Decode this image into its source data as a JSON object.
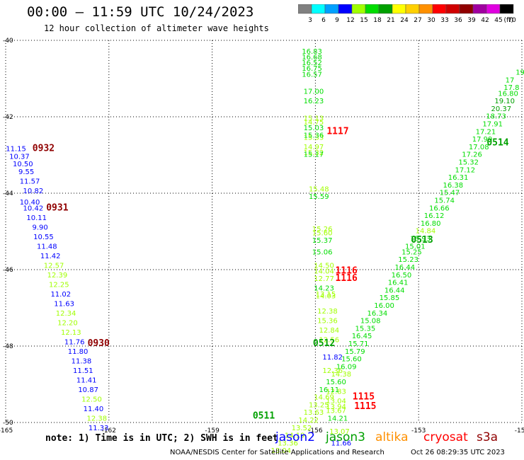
{
  "header": {
    "title": "00:00 – 11:59 UTC 10/24/2023",
    "subtitle": "12 hour collection of altimeter wave heights"
  },
  "color_scale": {
    "unit": "(ft)",
    "labels": [
      "3",
      "6",
      "9",
      "12",
      "15",
      "18",
      "21",
      "24",
      "27",
      "30",
      "33",
      "36",
      "39",
      "42",
      "45",
      "70"
    ],
    "colors": [
      "#808080",
      "#00ffff",
      "#00a0ff",
      "#0000ff",
      "#a0ff00",
      "#00dd00",
      "#00a000",
      "#ffff00",
      "#ffd000",
      "#ff9000",
      "#ff0000",
      "#d00000",
      "#900000",
      "#a000a0",
      "#e000e0",
      "#000000"
    ]
  },
  "footer": {
    "note": "note: 1) Time is in UTC; 2) SWH is in feet",
    "satellites": [
      {
        "name": "jason2",
        "color": "#0000ff"
      },
      {
        "name": "jason3",
        "color": "#00a000"
      },
      {
        "name": "altika",
        "color": "#ff9000"
      },
      {
        "name": "cryosat",
        "color": "#ff0000"
      },
      {
        "name": "s3a",
        "color": "#900000"
      }
    ],
    "credit": "NOAA/NESDIS Center for Satellite Applications and Research",
    "timestamp": "Oct 26 08:29:35 UTC 2023"
  },
  "chart_data": {
    "type": "scatter",
    "title": "00:00 – 11:59 UTC 10/24/2023",
    "subtitle": "12 hour collection of altimeter wave heights",
    "x_ticks": [
      "-165",
      "-162",
      "-159",
      "-156",
      "-153",
      "-150"
    ],
    "y_ticks": [
      "-40",
      "-42",
      "-44",
      "-46",
      "-48",
      "-50"
    ],
    "xlim": [
      -165,
      -150
    ],
    "ylim": [
      -50,
      -40
    ],
    "grid": true,
    "track_time_labels": [
      {
        "text": "0932",
        "lon": -163.9,
        "lat": -42.9,
        "color": "#900000"
      },
      {
        "text": "0931",
        "lon": -163.5,
        "lat": -44.45,
        "color": "#900000"
      },
      {
        "text": "0930",
        "lon": -162.3,
        "lat": -48.0,
        "color": "#900000"
      },
      {
        "text": "1117",
        "lon": -155.35,
        "lat": -42.45,
        "color": "#ff0000"
      },
      {
        "text": "1116",
        "lon": -155.1,
        "lat": -46.1,
        "color": "#ff0000"
      },
      {
        "text": "1116",
        "lon": -155.1,
        "lat": -46.3,
        "color": "#ff0000"
      },
      {
        "text": "1115",
        "lon": -154.6,
        "lat": -49.4,
        "color": "#ff0000"
      },
      {
        "text": "1115",
        "lon": -154.55,
        "lat": -49.65,
        "color": "#ff0000"
      },
      {
        "text": "0514",
        "lon": -150.7,
        "lat": -42.75,
        "color": "#00a000"
      },
      {
        "text": "0513",
        "lon": -152.9,
        "lat": -45.3,
        "color": "#00a000"
      },
      {
        "text": "0512",
        "lon": -155.75,
        "lat": -48.0,
        "color": "#00a000"
      },
      {
        "text": "0511",
        "lon": -157.5,
        "lat": -49.9,
        "color": "#00a000"
      }
    ],
    "series": [
      {
        "name": "s3a",
        "points": [
          {
            "lon": -164.7,
            "lat": -42.9,
            "v": "11.15",
            "c": "#0000ff"
          },
          {
            "lon": -164.6,
            "lat": -43.1,
            "v": "10.37",
            "c": "#0000ff"
          },
          {
            "lon": -164.5,
            "lat": -43.3,
            "v": "10.50",
            "c": "#0000ff"
          },
          {
            "lon": -164.4,
            "lat": -43.5,
            "v": "9.55",
            "c": "#0000ff"
          },
          {
            "lon": -164.3,
            "lat": -43.75,
            "v": "11.57",
            "c": "#0000ff"
          },
          {
            "lon": -164.2,
            "lat": -44.0,
            "v": "10.82",
            "c": "#0000ff"
          },
          {
            "lon": -164.3,
            "lat": -44.3,
            "v": "10.40",
            "c": "#0000ff"
          },
          {
            "lon": -164.2,
            "lat": -44.45,
            "v": "10.42",
            "c": "#0000ff"
          },
          {
            "lon": -164.1,
            "lat": -44.7,
            "v": "10.11",
            "c": "#0000ff"
          },
          {
            "lon": -164.0,
            "lat": -44.95,
            "v": "9.90",
            "c": "#0000ff"
          },
          {
            "lon": -163.9,
            "lat": -45.2,
            "v": "10.55",
            "c": "#0000ff"
          },
          {
            "lon": -163.8,
            "lat": -45.45,
            "v": "11.48",
            "c": "#0000ff"
          },
          {
            "lon": -163.7,
            "lat": -45.7,
            "v": "11.42",
            "c": "#0000ff"
          },
          {
            "lon": -163.6,
            "lat": -45.95,
            "v": "12.57",
            "c": "#a0ff00"
          },
          {
            "lon": -163.5,
            "lat": -46.2,
            "v": "12.39",
            "c": "#a0ff00"
          },
          {
            "lon": -163.45,
            "lat": -46.45,
            "v": "12.25",
            "c": "#a0ff00"
          },
          {
            "lon": -163.4,
            "lat": -46.7,
            "v": "11.02",
            "c": "#0000ff"
          },
          {
            "lon": -163.3,
            "lat": -46.95,
            "v": "11.63",
            "c": "#0000ff"
          },
          {
            "lon": -163.25,
            "lat": -47.2,
            "v": "12.34",
            "c": "#a0ff00"
          },
          {
            "lon": -163.2,
            "lat": -47.45,
            "v": "12.20",
            "c": "#a0ff00"
          },
          {
            "lon": -163.1,
            "lat": -47.7,
            "v": "12.13",
            "c": "#a0ff00"
          },
          {
            "lon": -163.0,
            "lat": -47.95,
            "v": "11.76",
            "c": "#0000ff"
          },
          {
            "lon": -162.9,
            "lat": -48.2,
            "v": "11.80",
            "c": "#0000ff"
          },
          {
            "lon": -162.8,
            "lat": -48.45,
            "v": "11.38",
            "c": "#0000ff"
          },
          {
            "lon": -162.75,
            "lat": -48.7,
            "v": "11.51",
            "c": "#0000ff"
          },
          {
            "lon": -162.65,
            "lat": -48.95,
            "v": "11.41",
            "c": "#0000ff"
          },
          {
            "lon": -162.6,
            "lat": -49.2,
            "v": "10.87",
            "c": "#0000ff"
          },
          {
            "lon": -162.5,
            "lat": -49.45,
            "v": "12.50",
            "c": "#a0ff00"
          },
          {
            "lon": -162.45,
            "lat": -49.7,
            "v": "11.40",
            "c": "#0000ff"
          },
          {
            "lon": -162.35,
            "lat": -49.95,
            "v": "12.38",
            "c": "#a0ff00"
          },
          {
            "lon": -162.3,
            "lat": -50.2,
            "v": "11.33",
            "c": "#0000ff"
          }
        ]
      },
      {
        "name": "cryosat",
        "points": [
          {
            "lon": -156.1,
            "lat": -40.35,
            "v": "16.83",
            "c": "#00dd00"
          },
          {
            "lon": -156.1,
            "lat": -40.5,
            "v": "16.68",
            "c": "#00dd00"
          },
          {
            "lon": -156.1,
            "lat": -40.65,
            "v": "16.52",
            "c": "#00dd00"
          },
          {
            "lon": -156.1,
            "lat": -40.8,
            "v": "16.75",
            "c": "#00dd00"
          },
          {
            "lon": -156.1,
            "lat": -40.95,
            "v": "16.57",
            "c": "#00dd00"
          },
          {
            "lon": -156.05,
            "lat": -41.4,
            "v": "17.00",
            "c": "#00dd00"
          },
          {
            "lon": -156.05,
            "lat": -41.65,
            "v": "16.23",
            "c": "#00dd00"
          },
          {
            "lon": -156.05,
            "lat": -42.1,
            "v": "15.13",
            "c": "#a0ff00"
          },
          {
            "lon": -156.05,
            "lat": -42.2,
            "v": "14.75",
            "c": "#a0ff00"
          },
          {
            "lon": -156.05,
            "lat": -42.35,
            "v": "15.03",
            "c": "#00dd00"
          },
          {
            "lon": -156.05,
            "lat": -42.6,
            "v": "15.33",
            "c": "#a0ff00"
          },
          {
            "lon": -156.05,
            "lat": -42.55,
            "v": "15.36",
            "c": "#00dd00"
          },
          {
            "lon": -156.05,
            "lat": -42.85,
            "v": "14.97",
            "c": "#a0ff00"
          },
          {
            "lon": -156.05,
            "lat": -43.0,
            "v": "15.32",
            "c": "#a0ff00"
          },
          {
            "lon": -156.05,
            "lat": -43.05,
            "v": "15.17",
            "c": "#00dd00"
          },
          {
            "lon": -155.9,
            "lat": -43.95,
            "v": "15.48",
            "c": "#a0ff00"
          },
          {
            "lon": -155.9,
            "lat": -44.15,
            "v": "15.59",
            "c": "#00dd00"
          },
          {
            "lon": -155.8,
            "lat": -45.0,
            "v": "15.26",
            "c": "#a0ff00"
          },
          {
            "lon": -155.8,
            "lat": -45.1,
            "v": "15.60",
            "c": "#a0ff00"
          },
          {
            "lon": -155.8,
            "lat": -45.3,
            "v": "15.37",
            "c": "#00dd00"
          },
          {
            "lon": -155.8,
            "lat": -45.6,
            "v": "15.06",
            "c": "#00dd00"
          },
          {
            "lon": -155.75,
            "lat": -45.95,
            "v": "14.50",
            "c": "#a0ff00"
          },
          {
            "lon": -155.75,
            "lat": -46.1,
            "v": "14.04",
            "c": "#a0ff00"
          },
          {
            "lon": -155.75,
            "lat": -46.3,
            "v": "12.77",
            "c": "#a0ff00"
          },
          {
            "lon": -155.75,
            "lat": -46.55,
            "v": "14.23",
            "c": "#00dd00"
          },
          {
            "lon": -155.7,
            "lat": -46.7,
            "v": "13.15",
            "c": "#a0ff00"
          },
          {
            "lon": -155.7,
            "lat": -46.75,
            "v": "14.03",
            "c": "#a0ff00"
          },
          {
            "lon": -155.65,
            "lat": -47.15,
            "v": "12.38",
            "c": "#a0ff00"
          },
          {
            "lon": -155.65,
            "lat": -47.4,
            "v": "15.36",
            "c": "#a0ff00"
          },
          {
            "lon": -155.6,
            "lat": -47.65,
            "v": "12.84",
            "c": "#a0ff00"
          },
          {
            "lon": -155.6,
            "lat": -47.9,
            "v": "12.56",
            "c": "#a0ff00"
          },
          {
            "lon": -155.5,
            "lat": -48.35,
            "v": "11.82",
            "c": "#0000ff"
          },
          {
            "lon": -155.5,
            "lat": -48.7,
            "v": "12.36",
            "c": "#a0ff00"
          },
          {
            "lon": -155.4,
            "lat": -49.25,
            "v": "12.83",
            "c": "#a0ff00"
          },
          {
            "lon": -155.4,
            "lat": -49.5,
            "v": "13.04",
            "c": "#a0ff00"
          },
          {
            "lon": -155.4,
            "lat": -49.65,
            "v": "13.94",
            "c": "#a0ff00"
          },
          {
            "lon": -155.4,
            "lat": -49.75,
            "v": "13.67",
            "c": "#a0ff00"
          },
          {
            "lon": -155.35,
            "lat": -49.95,
            "v": "14.21",
            "c": "#00dd00"
          },
          {
            "lon": -155.3,
            "lat": -50.3,
            "v": "13.07",
            "c": "#a0ff00"
          },
          {
            "lon": -155.25,
            "lat": -50.6,
            "v": "11.66",
            "c": "#0000ff"
          }
        ]
      },
      {
        "name": "jason3",
        "points": [
          {
            "lon": -150.05,
            "lat": -40.9,
            "v": "19",
            "c": "#00dd00"
          },
          {
            "lon": -150.35,
            "lat": -41.1,
            "v": "17",
            "c": "#00dd00"
          },
          {
            "lon": -150.3,
            "lat": -41.3,
            "v": "17.8",
            "c": "#00dd00"
          },
          {
            "lon": -150.4,
            "lat": -41.45,
            "v": "16.80",
            "c": "#00dd00"
          },
          {
            "lon": -150.5,
            "lat": -41.65,
            "v": "19.10",
            "c": "#00a000"
          },
          {
            "lon": -150.6,
            "lat": -41.85,
            "v": "20.37",
            "c": "#00a000"
          },
          {
            "lon": -150.75,
            "lat": -42.05,
            "v": "18.73",
            "c": "#00dd00"
          },
          {
            "lon": -150.85,
            "lat": -42.25,
            "v": "17.91",
            "c": "#00dd00"
          },
          {
            "lon": -151.05,
            "lat": -42.45,
            "v": "17.21",
            "c": "#00dd00"
          },
          {
            "lon": -151.15,
            "lat": -42.65,
            "v": "17.99",
            "c": "#00dd00"
          },
          {
            "lon": -151.25,
            "lat": -42.85,
            "v": "17.08",
            "c": "#00dd00"
          },
          {
            "lon": -151.45,
            "lat": -43.05,
            "v": "17.26",
            "c": "#00dd00"
          },
          {
            "lon": -151.55,
            "lat": -43.25,
            "v": "15.32",
            "c": "#00dd00"
          },
          {
            "lon": -151.65,
            "lat": -43.45,
            "v": "17.12",
            "c": "#00dd00"
          },
          {
            "lon": -151.85,
            "lat": -43.65,
            "v": "16.31",
            "c": "#00dd00"
          },
          {
            "lon": -152.0,
            "lat": -43.85,
            "v": "16.38",
            "c": "#00dd00"
          },
          {
            "lon": -152.1,
            "lat": -44.05,
            "v": "15.47",
            "c": "#00dd00"
          },
          {
            "lon": -152.25,
            "lat": -44.25,
            "v": "15.74",
            "c": "#00dd00"
          },
          {
            "lon": -152.4,
            "lat": -44.45,
            "v": "16.66",
            "c": "#00dd00"
          },
          {
            "lon": -152.55,
            "lat": -44.65,
            "v": "16.12",
            "c": "#00dd00"
          },
          {
            "lon": -152.65,
            "lat": -44.85,
            "v": "16.80",
            "c": "#00dd00"
          },
          {
            "lon": -152.8,
            "lat": -45.05,
            "v": "14.84",
            "c": "#a0ff00"
          },
          {
            "lon": -152.95,
            "lat": -45.25,
            "v": "15.93",
            "c": "#00dd00"
          },
          {
            "lon": -153.1,
            "lat": -45.45,
            "v": "15.01",
            "c": "#00dd00"
          },
          {
            "lon": -153.2,
            "lat": -45.6,
            "v": "15.25",
            "c": "#00dd00"
          },
          {
            "lon": -153.3,
            "lat": -45.8,
            "v": "15.23",
            "c": "#00dd00"
          },
          {
            "lon": -153.4,
            "lat": -46.0,
            "v": "16.44",
            "c": "#00dd00"
          },
          {
            "lon": -153.5,
            "lat": -46.2,
            "v": "16.50",
            "c": "#00dd00"
          },
          {
            "lon": -153.6,
            "lat": -46.4,
            "v": "16.41",
            "c": "#00dd00"
          },
          {
            "lon": -153.7,
            "lat": -46.6,
            "v": "16.44",
            "c": "#00dd00"
          },
          {
            "lon": -153.85,
            "lat": -46.8,
            "v": "15.85",
            "c": "#00dd00"
          },
          {
            "lon": -154.0,
            "lat": -47.0,
            "v": "16.00",
            "c": "#00dd00"
          },
          {
            "lon": -154.2,
            "lat": -47.2,
            "v": "16.34",
            "c": "#00dd00"
          },
          {
            "lon": -154.4,
            "lat": -47.4,
            "v": "15.08",
            "c": "#00dd00"
          },
          {
            "lon": -154.55,
            "lat": -47.6,
            "v": "15.35",
            "c": "#00dd00"
          },
          {
            "lon": -154.65,
            "lat": -47.8,
            "v": "16.45",
            "c": "#00dd00"
          },
          {
            "lon": -154.75,
            "lat": -48.0,
            "v": "15.71",
            "c": "#00dd00"
          },
          {
            "lon": -154.85,
            "lat": -48.2,
            "v": "15.79",
            "c": "#00dd00"
          },
          {
            "lon": -154.95,
            "lat": -48.4,
            "v": "15.60",
            "c": "#00dd00"
          },
          {
            "lon": -155.1,
            "lat": -48.6,
            "v": "16.09",
            "c": "#00dd00"
          },
          {
            "lon": -155.25,
            "lat": -48.8,
            "v": "14.38",
            "c": "#a0ff00"
          },
          {
            "lon": -155.4,
            "lat": -49.0,
            "v": "15.60",
            "c": "#00dd00"
          },
          {
            "lon": -155.6,
            "lat": -49.2,
            "v": "16.11",
            "c": "#00dd00"
          },
          {
            "lon": -155.75,
            "lat": -49.4,
            "v": "14.69",
            "c": "#a0ff00"
          },
          {
            "lon": -155.9,
            "lat": -49.6,
            "v": "13.25",
            "c": "#a0ff00"
          },
          {
            "lon": -156.05,
            "lat": -49.8,
            "v": "13.63",
            "c": "#a0ff00"
          },
          {
            "lon": -156.2,
            "lat": -50.0,
            "v": "14.22",
            "c": "#a0ff00"
          },
          {
            "lon": -156.4,
            "lat": -50.2,
            "v": "13.52",
            "c": "#a0ff00"
          },
          {
            "lon": -156.6,
            "lat": -50.4,
            "v": "14.19",
            "c": "#a0ff00"
          },
          {
            "lon": -156.8,
            "lat": -50.6,
            "v": "13.36",
            "c": "#a0ff00"
          },
          {
            "lon": -157.0,
            "lat": -50.8,
            "v": "13.04",
            "c": "#a0ff00"
          }
        ]
      }
    ]
  }
}
